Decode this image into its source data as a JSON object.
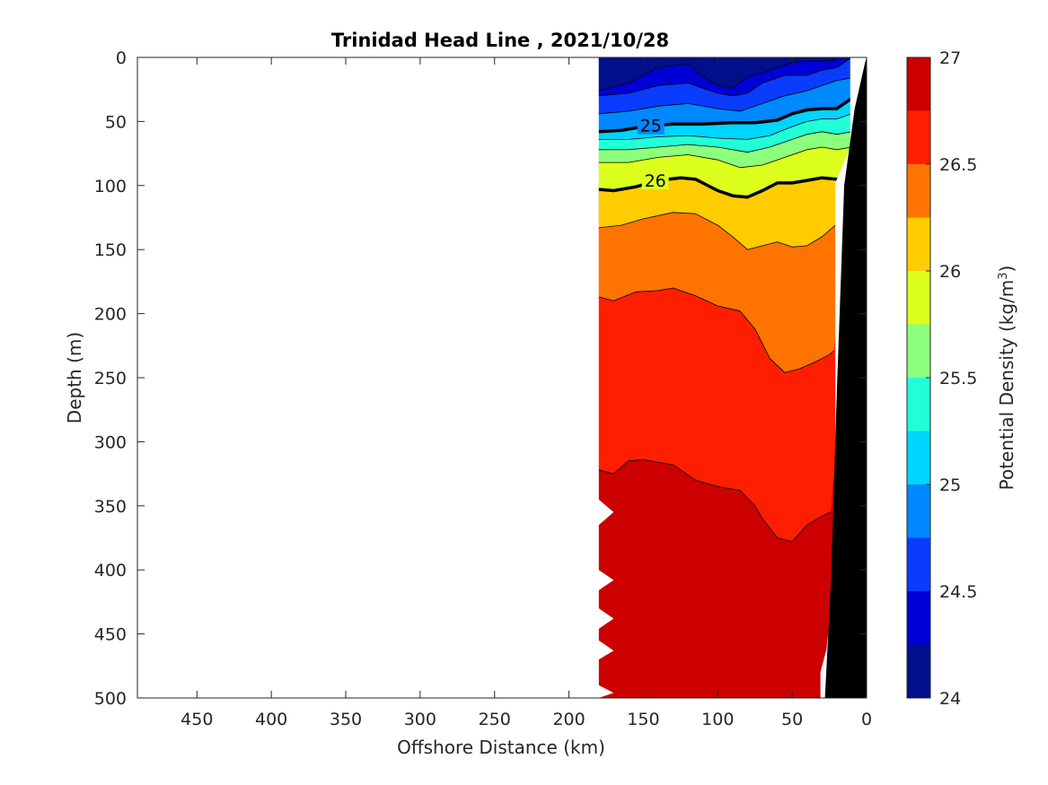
{
  "chart_data": {
    "type": "contour",
    "title": "Trinidad Head Line , 2021/10/28",
    "xlabel": "Offshore Distance (km)",
    "ylabel": "Depth (m)",
    "xlim": [
      490,
      0
    ],
    "ylim": [
      0,
      500
    ],
    "x_reversed": true,
    "y_reversed": true,
    "x_ticks": [
      450,
      400,
      350,
      300,
      250,
      200,
      150,
      100,
      50,
      0
    ],
    "y_ticks": [
      0,
      50,
      100,
      150,
      200,
      250,
      300,
      350,
      400,
      450,
      500
    ],
    "colorbar": {
      "label": "Potential Density (kg/m",
      "label_superscript": "3",
      "label_suffix": ")",
      "range": [
        24,
        27
      ],
      "tick_values": [
        24,
        24.5,
        25,
        25.5,
        26,
        26.5,
        27
      ],
      "tick_labels": [
        "24",
        "24.5",
        "25",
        "25.5",
        "26",
        "26.5",
        "27"
      ],
      "levels": [
        24,
        24.25,
        24.5,
        24.75,
        25,
        25.25,
        25.5,
        25.75,
        26,
        26.25,
        26.5,
        26.75,
        27
      ],
      "colors": [
        "#000f8a",
        "#0000d6",
        "#0a3cff",
        "#0088ff",
        "#00d5ff",
        "#21ffd7",
        "#8cff7c",
        "#dcff1d",
        "#ffcc00",
        "#ff7400",
        "#ff1f00",
        "#cc0000"
      ]
    },
    "labeled_contours": [
      {
        "level": 25,
        "label": "25",
        "label_x": 145,
        "label_depth": 53
      },
      {
        "level": 26,
        "label": "26",
        "label_x": 142,
        "label_depth": 96
      }
    ],
    "contour_isolines": [
      {
        "level": 24.25,
        "points": [
          [
            180,
            26
          ],
          [
            160,
            20
          ],
          [
            140,
            8
          ],
          [
            120,
            5
          ],
          [
            110,
            15
          ],
          [
            100,
            22
          ],
          [
            90,
            24
          ],
          [
            80,
            15
          ],
          [
            70,
            12
          ],
          [
            60,
            8
          ],
          [
            50,
            4
          ],
          [
            40,
            3
          ],
          [
            30,
            3
          ],
          [
            20,
            2
          ]
        ]
      },
      {
        "level": 24.5,
        "points": [
          [
            180,
            30
          ],
          [
            160,
            28
          ],
          [
            140,
            22
          ],
          [
            120,
            20
          ],
          [
            100,
            28
          ],
          [
            90,
            30
          ],
          [
            80,
            28
          ],
          [
            70,
            20
          ],
          [
            55,
            14
          ],
          [
            40,
            14
          ],
          [
            30,
            10
          ],
          [
            20,
            8
          ],
          [
            10,
            0
          ]
        ]
      },
      {
        "level": 24.75,
        "points": [
          [
            180,
            44
          ],
          [
            160,
            42
          ],
          [
            140,
            38
          ],
          [
            120,
            36
          ],
          [
            100,
            40
          ],
          [
            85,
            42
          ],
          [
            70,
            36
          ],
          [
            55,
            30
          ],
          [
            40,
            26
          ],
          [
            30,
            22
          ],
          [
            20,
            18
          ],
          [
            10,
            16
          ]
        ]
      },
      {
        "level": 25,
        "points": [
          [
            180,
            58
          ],
          [
            165,
            57
          ],
          [
            150,
            54
          ],
          [
            130,
            52
          ],
          [
            110,
            52
          ],
          [
            90,
            51
          ],
          [
            75,
            51
          ],
          [
            60,
            49
          ],
          [
            50,
            44
          ],
          [
            40,
            41
          ],
          [
            30,
            40
          ],
          [
            20,
            40
          ],
          [
            10,
            32
          ]
        ]
      },
      {
        "level": 25.25,
        "points": [
          [
            180,
            64
          ],
          [
            160,
            64
          ],
          [
            140,
            62
          ],
          [
            120,
            61
          ],
          [
            100,
            63
          ],
          [
            80,
            64
          ],
          [
            65,
            61
          ],
          [
            50,
            54
          ],
          [
            40,
            50
          ],
          [
            30,
            48
          ],
          [
            20,
            48
          ],
          [
            10,
            44
          ]
        ]
      },
      {
        "level": 25.5,
        "points": [
          [
            180,
            72
          ],
          [
            160,
            72
          ],
          [
            140,
            70
          ],
          [
            120,
            68
          ],
          [
            100,
            70
          ],
          [
            80,
            74
          ],
          [
            65,
            70
          ],
          [
            50,
            64
          ],
          [
            40,
            60
          ],
          [
            30,
            58
          ],
          [
            20,
            60
          ],
          [
            10,
            58
          ]
        ]
      },
      {
        "level": 25.75,
        "points": [
          [
            180,
            82
          ],
          [
            160,
            82
          ],
          [
            140,
            78
          ],
          [
            120,
            76
          ],
          [
            100,
            80
          ],
          [
            85,
            86
          ],
          [
            70,
            84
          ],
          [
            55,
            78
          ],
          [
            40,
            72
          ],
          [
            30,
            70
          ],
          [
            20,
            72
          ],
          [
            10,
            70
          ]
        ]
      },
      {
        "level": 26,
        "points": [
          [
            180,
            103
          ],
          [
            170,
            104
          ],
          [
            155,
            101
          ],
          [
            140,
            96
          ],
          [
            125,
            94
          ],
          [
            115,
            95
          ],
          [
            100,
            104
          ],
          [
            90,
            108
          ],
          [
            80,
            109
          ],
          [
            70,
            104
          ],
          [
            60,
            98
          ],
          [
            50,
            98
          ],
          [
            40,
            96
          ],
          [
            30,
            94
          ],
          [
            20,
            95
          ],
          [
            14,
            94
          ]
        ]
      },
      {
        "level": 26.25,
        "points": [
          [
            180,
            133
          ],
          [
            165,
            131
          ],
          [
            150,
            126
          ],
          [
            130,
            121
          ],
          [
            115,
            122
          ],
          [
            100,
            131
          ],
          [
            90,
            140
          ],
          [
            80,
            150
          ],
          [
            70,
            147
          ],
          [
            60,
            144
          ],
          [
            50,
            148
          ],
          [
            40,
            147
          ],
          [
            30,
            140
          ],
          [
            20,
            130
          ]
        ]
      },
      {
        "level": 26.5,
        "points": [
          [
            180,
            187
          ],
          [
            170,
            190
          ],
          [
            155,
            183
          ],
          [
            140,
            182
          ],
          [
            130,
            180
          ],
          [
            115,
            186
          ],
          [
            100,
            194
          ],
          [
            85,
            198
          ],
          [
            75,
            212
          ],
          [
            65,
            235
          ],
          [
            55,
            246
          ],
          [
            45,
            243
          ],
          [
            35,
            238
          ],
          [
            25,
            232
          ],
          [
            22,
            229
          ]
        ]
      },
      {
        "level": 26.75,
        "points": [
          [
            180,
            322
          ],
          [
            170,
            325
          ],
          [
            160,
            315
          ],
          [
            150,
            314
          ],
          [
            130,
            318
          ],
          [
            115,
            330
          ],
          [
            100,
            335
          ],
          [
            85,
            338
          ],
          [
            75,
            350
          ],
          [
            70,
            360
          ],
          [
            60,
            375
          ],
          [
            50,
            378
          ],
          [
            40,
            365
          ],
          [
            30,
            358
          ],
          [
            24,
            355
          ]
        ]
      }
    ],
    "data_region_x": [
      0,
      180
    ],
    "bottom_topography": "black wedge from (0 km, 0 m) to (~26 km, 500 m)"
  }
}
